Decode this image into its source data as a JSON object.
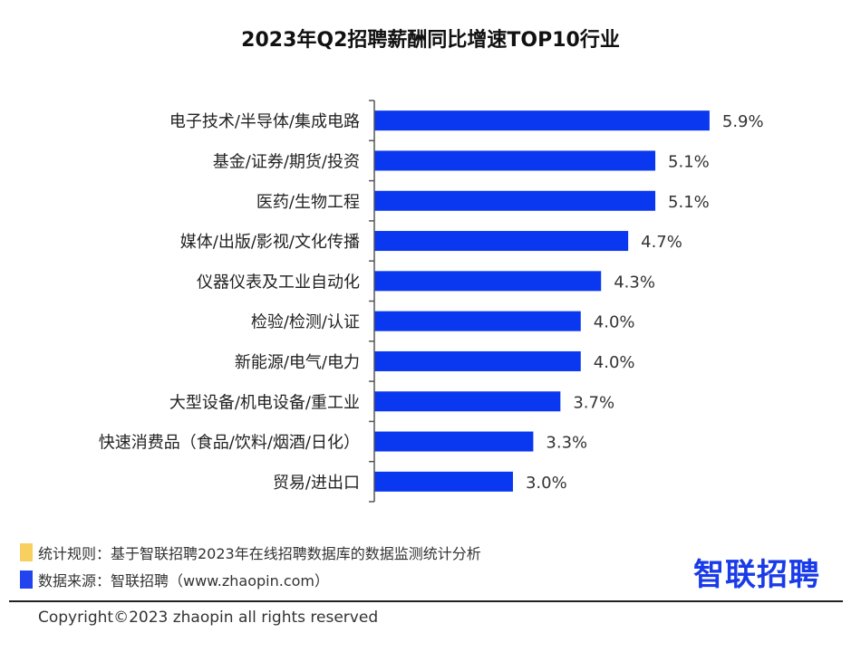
{
  "chart_data": {
    "type": "bar",
    "orientation": "horizontal",
    "title": "2023年Q2招聘薪酬同比增速TOP10行业",
    "categories": [
      "电子技术/半导体/集成电路",
      "基金/证券/期货/投资",
      "医药/生物工程",
      "媒体/出版/影视/文化传播",
      "仪器仪表及工业自动化",
      "检验/检测/认证",
      "新能源/电气/电力",
      "大型设备/机电设备/重工业",
      "快速消费品（食品/饮料/烟酒/日化）",
      "贸易/进出口"
    ],
    "values": [
      5.9,
      5.1,
      5.1,
      4.7,
      4.3,
      4.0,
      4.0,
      3.7,
      3.3,
      3.0
    ],
    "labels": [
      "5.9%",
      "5.1%",
      "5.1%",
      "4.7%",
      "4.3%",
      "4.0%",
      "4.0%",
      "3.7%",
      "3.3%",
      "3.0%"
    ],
    "unit": "%",
    "grid": false,
    "bar_color": "#0a37f0"
  },
  "footer": {
    "rule_note": "统计规则：基于智联招聘2023年在线招聘数据库的数据监测统计分析",
    "source_note": "数据来源：智联招聘（www.zhaopin.com）",
    "rule_color": "#f8d060",
    "source_color": "#2244ee",
    "logo": "智联招聘",
    "copyright": "Copyright©2023 zhaopin all rights reserved"
  }
}
